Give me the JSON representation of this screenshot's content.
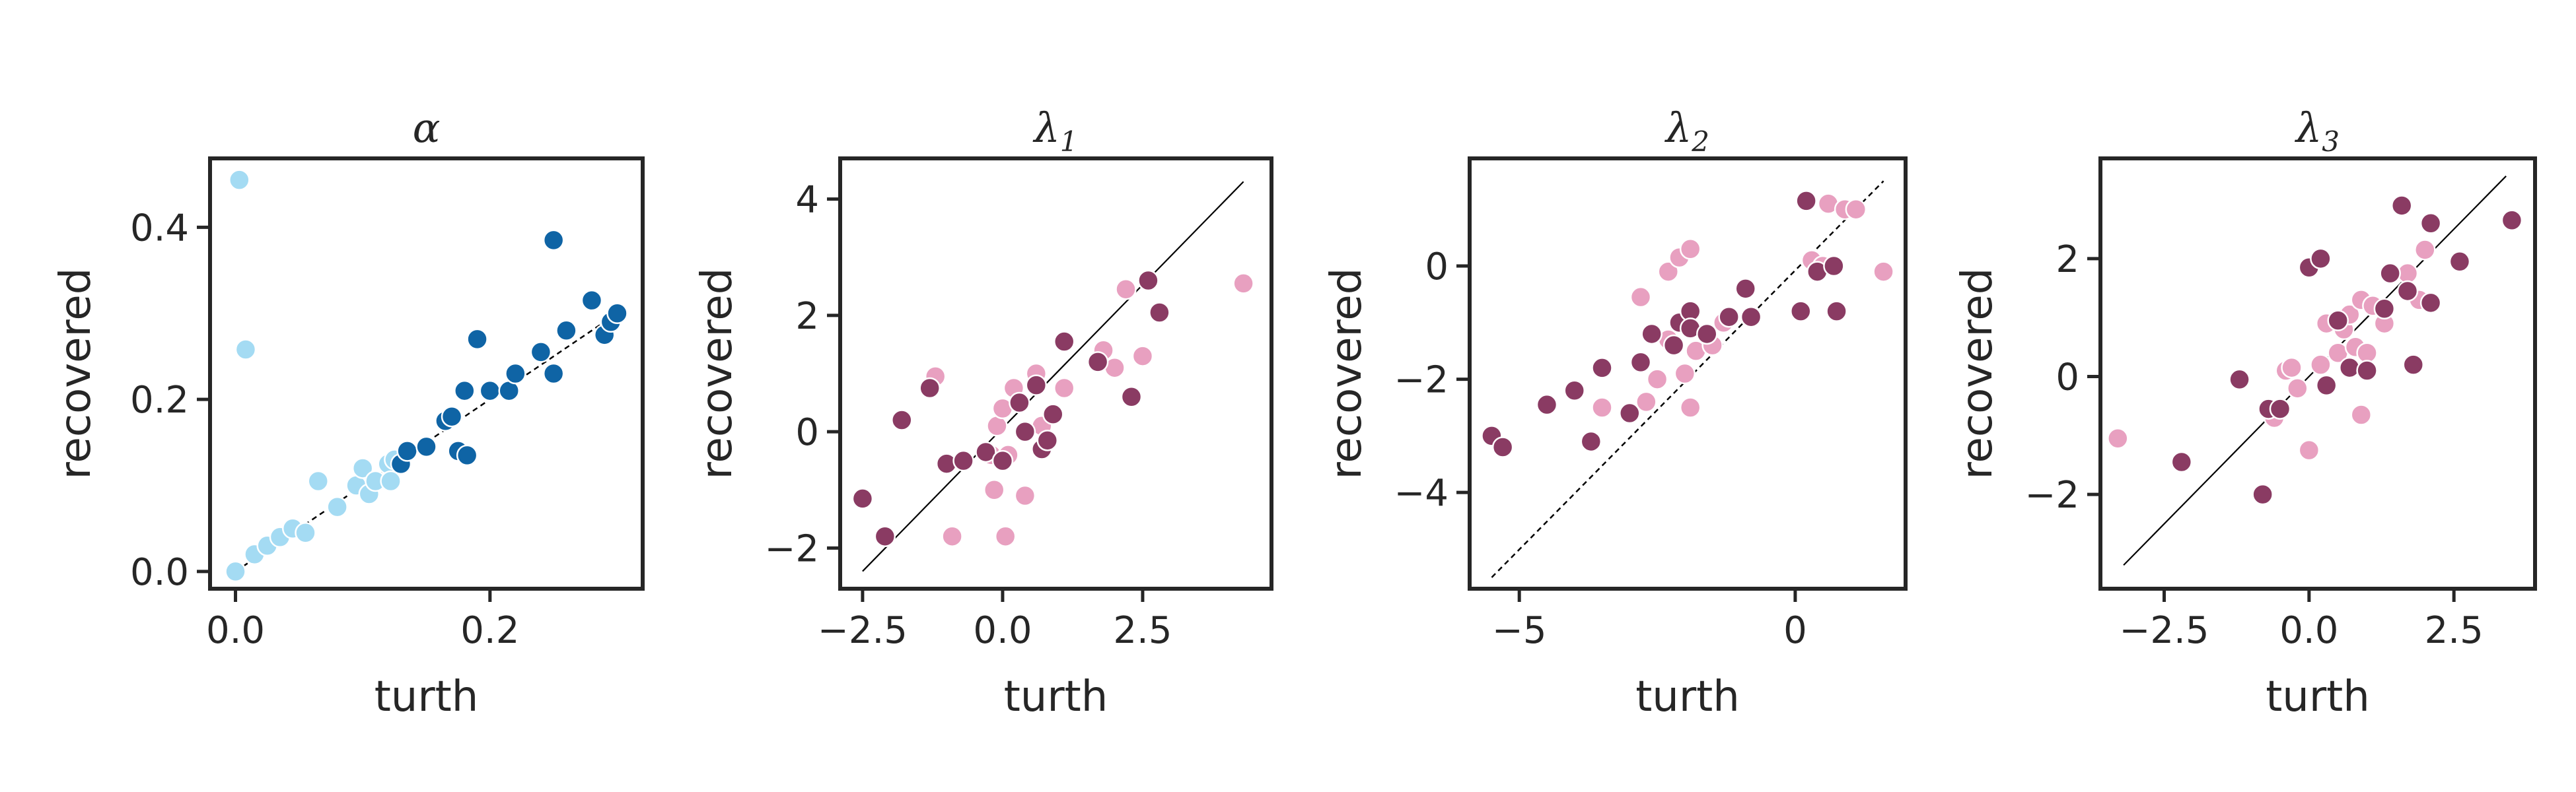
{
  "figure": {
    "panels": [
      "alpha",
      "lambda1",
      "lambda2",
      "lambda3"
    ]
  },
  "colors": {
    "alpha_light": "#a4dbf3",
    "alpha_dark": "#0f64a5",
    "lambda_light": "#e8a0c0",
    "lambda_dark": "#8a3b63",
    "axes": "#262626",
    "point_edge": "#ffffff"
  },
  "chart_data": [
    {
      "type": "scatter",
      "title": "α",
      "title_main": "α",
      "title_sub": "",
      "xlabel": "turth",
      "ylabel": "recovered",
      "xlim": [
        -0.02,
        0.32
      ],
      "ylim": [
        -0.02,
        0.48
      ],
      "xticks": [
        0.0,
        0.2
      ],
      "xtick_labels": [
        "0.0",
        "0.2"
      ],
      "yticks": [
        0.0,
        0.2,
        0.4
      ],
      "ytick_labels": [
        "0.0",
        "0.2",
        "0.4"
      ],
      "reference_line": {
        "style": "dashed",
        "x": [
          0.0,
          0.3
        ],
        "y": [
          0.0,
          0.3
        ]
      },
      "series": [
        {
          "color_key": "alpha_light",
          "points": [
            [
              0.0,
              0.0
            ],
            [
              0.003,
              0.455
            ],
            [
              0.008,
              0.258
            ],
            [
              0.015,
              0.02
            ],
            [
              0.025,
              0.03
            ],
            [
              0.035,
              0.04
            ],
            [
              0.045,
              0.05
            ],
            [
              0.055,
              0.045
            ],
            [
              0.065,
              0.105
            ],
            [
              0.08,
              0.075
            ],
            [
              0.095,
              0.1
            ],
            [
              0.1,
              0.12
            ],
            [
              0.105,
              0.09
            ],
            [
              0.11,
              0.105
            ],
            [
              0.12,
              0.125
            ],
            [
              0.122,
              0.105
            ],
            [
              0.125,
              0.13
            ]
          ]
        },
        {
          "color_key": "alpha_dark",
          "points": [
            [
              0.13,
              0.125
            ],
            [
              0.135,
              0.14
            ],
            [
              0.15,
              0.145
            ],
            [
              0.165,
              0.175
            ],
            [
              0.17,
              0.18
            ],
            [
              0.175,
              0.14
            ],
            [
              0.18,
              0.21
            ],
            [
              0.182,
              0.135
            ],
            [
              0.19,
              0.27
            ],
            [
              0.2,
              0.21
            ],
            [
              0.215,
              0.21
            ],
            [
              0.22,
              0.23
            ],
            [
              0.24,
              0.255
            ],
            [
              0.25,
              0.23
            ],
            [
              0.25,
              0.385
            ],
            [
              0.26,
              0.28
            ],
            [
              0.28,
              0.315
            ],
            [
              0.29,
              0.275
            ],
            [
              0.295,
              0.29
            ],
            [
              0.3,
              0.3
            ]
          ]
        }
      ]
    },
    {
      "type": "scatter",
      "title": "λ1",
      "title_main": "λ",
      "title_sub": "1",
      "xlabel": "turth",
      "ylabel": "recovered",
      "xlim": [
        -2.9,
        4.8
      ],
      "ylim": [
        -2.7,
        4.7
      ],
      "xticks": [
        -2.5,
        0.0,
        2.5
      ],
      "xtick_labels": [
        "−2.5",
        "0.0",
        "2.5"
      ],
      "yticks": [
        -2,
        0,
        2,
        4
      ],
      "ytick_labels": [
        "−2",
        "0",
        "2",
        "4"
      ],
      "reference_line": {
        "style": "solid-dashed",
        "x": [
          -2.5,
          4.3
        ],
        "y": [
          -2.4,
          4.3
        ]
      },
      "series": [
        {
          "color_key": "lambda_light",
          "points": [
            [
              -1.2,
              0.95
            ],
            [
              -0.9,
              -1.8
            ],
            [
              -0.2,
              -0.4
            ],
            [
              -0.15,
              -1.0
            ],
            [
              -0.1,
              0.1
            ],
            [
              0.0,
              0.4
            ],
            [
              0.05,
              -1.8
            ],
            [
              0.1,
              -0.4
            ],
            [
              0.2,
              0.75
            ],
            [
              0.4,
              -1.1
            ],
            [
              0.6,
              1.0
            ],
            [
              0.7,
              0.1
            ],
            [
              1.1,
              0.75
            ],
            [
              1.8,
              1.4
            ],
            [
              2.0,
              1.1
            ],
            [
              2.2,
              2.45
            ],
            [
              2.5,
              1.3
            ],
            [
              4.3,
              2.55
            ]
          ]
        },
        {
          "color_key": "lambda_dark",
          "points": [
            [
              -2.5,
              -1.15
            ],
            [
              -2.1,
              -1.8
            ],
            [
              -1.8,
              0.2
            ],
            [
              -1.3,
              0.75
            ],
            [
              -1.0,
              -0.55
            ],
            [
              -0.7,
              -0.5
            ],
            [
              -0.3,
              -0.35
            ],
            [
              0.0,
              -0.5
            ],
            [
              0.3,
              0.5
            ],
            [
              0.4,
              0.0
            ],
            [
              0.6,
              0.8
            ],
            [
              0.7,
              -0.3
            ],
            [
              0.8,
              -0.15
            ],
            [
              0.9,
              0.3
            ],
            [
              1.1,
              1.55
            ],
            [
              1.7,
              1.2
            ],
            [
              2.3,
              0.6
            ],
            [
              2.6,
              2.6
            ],
            [
              2.8,
              2.05
            ]
          ]
        }
      ]
    },
    {
      "type": "scatter",
      "title": "λ2",
      "title_main": "λ",
      "title_sub": "2",
      "xlabel": "turth",
      "ylabel": "recovered",
      "xlim": [
        -5.9,
        2.0
      ],
      "ylim": [
        -5.7,
        1.9
      ],
      "xticks": [
        -5,
        0
      ],
      "xtick_labels": [
        "−5",
        "0"
      ],
      "yticks": [
        -4,
        -2,
        0
      ],
      "ytick_labels": [
        "−4",
        "−2",
        "0"
      ],
      "reference_line": {
        "style": "dashed",
        "x": [
          -5.5,
          1.6
        ],
        "y": [
          -5.5,
          1.5
        ]
      },
      "series": [
        {
          "color_key": "lambda_light",
          "points": [
            [
              -3.5,
              -2.5
            ],
            [
              -2.8,
              -0.55
            ],
            [
              -2.7,
              -2.4
            ],
            [
              -2.5,
              -2.0
            ],
            [
              -2.3,
              -0.1
            ],
            [
              -2.3,
              -1.3
            ],
            [
              -2.1,
              0.15
            ],
            [
              -2.0,
              -1.9
            ],
            [
              -1.9,
              0.3
            ],
            [
              -1.9,
              -2.5
            ],
            [
              -1.8,
              -1.5
            ],
            [
              -1.5,
              -1.4
            ],
            [
              -1.3,
              -1.0
            ],
            [
              0.3,
              0.1
            ],
            [
              0.4,
              -0.1
            ],
            [
              0.5,
              0.0
            ],
            [
              0.6,
              1.1
            ],
            [
              0.9,
              1.0
            ],
            [
              1.1,
              1.0
            ],
            [
              1.6,
              -0.1
            ]
          ]
        },
        {
          "color_key": "lambda_dark",
          "points": [
            [
              -5.5,
              -3.0
            ],
            [
              -5.3,
              -3.2
            ],
            [
              -4.5,
              -2.45
            ],
            [
              -4.0,
              -2.2
            ],
            [
              -3.7,
              -3.1
            ],
            [
              -3.5,
              -1.8
            ],
            [
              -3.0,
              -2.6
            ],
            [
              -2.8,
              -1.7
            ],
            [
              -2.6,
              -1.2
            ],
            [
              -2.2,
              -1.4
            ],
            [
              -2.1,
              -1.0
            ],
            [
              -1.9,
              -0.8
            ],
            [
              -1.9,
              -1.1
            ],
            [
              -1.6,
              -1.2
            ],
            [
              -1.2,
              -0.9
            ],
            [
              -0.9,
              -0.4
            ],
            [
              -0.8,
              -0.9
            ],
            [
              0.1,
              -0.8
            ],
            [
              0.2,
              1.15
            ],
            [
              0.4,
              -0.1
            ],
            [
              0.7,
              0.0
            ],
            [
              0.75,
              -0.8
            ]
          ]
        }
      ]
    },
    {
      "type": "scatter",
      "title": "λ3",
      "title_main": "λ",
      "title_sub": "3",
      "xlabel": "turth",
      "ylabel": "recovered",
      "xlim": [
        -3.6,
        3.9
      ],
      "ylim": [
        -3.6,
        3.7
      ],
      "xticks": [
        -2.5,
        0.0,
        2.5
      ],
      "xtick_labels": [
        "−2.5",
        "0.0",
        "2.5"
      ],
      "yticks": [
        -2,
        0,
        2
      ],
      "ytick_labels": [
        "−2",
        "0",
        "2"
      ],
      "reference_line": {
        "style": "solid-dashed",
        "x": [
          -3.2,
          3.4
        ],
        "y": [
          -3.2,
          3.4
        ]
      },
      "series": [
        {
          "color_key": "lambda_light",
          "points": [
            [
              -3.3,
              -1.05
            ],
            [
              -0.6,
              -0.7
            ],
            [
              -0.4,
              0.1
            ],
            [
              -0.3,
              0.15
            ],
            [
              -0.2,
              -0.2
            ],
            [
              0.0,
              -1.25
            ],
            [
              0.2,
              0.2
            ],
            [
              0.3,
              0.9
            ],
            [
              0.5,
              0.4
            ],
            [
              0.6,
              0.8
            ],
            [
              0.7,
              1.05
            ],
            [
              0.8,
              0.5
            ],
            [
              0.9,
              1.3
            ],
            [
              0.9,
              -0.65
            ],
            [
              1.0,
              0.4
            ],
            [
              1.1,
              1.2
            ],
            [
              1.3,
              0.9
            ],
            [
              1.7,
              1.75
            ],
            [
              1.9,
              1.3
            ],
            [
              2.0,
              2.15
            ]
          ]
        },
        {
          "color_key": "lambda_dark",
          "points": [
            [
              -2.2,
              -1.45
            ],
            [
              -1.2,
              -0.05
            ],
            [
              -0.8,
              -2.0
            ],
            [
              -0.7,
              -0.55
            ],
            [
              -0.5,
              -0.55
            ],
            [
              0.0,
              1.85
            ],
            [
              0.2,
              2.0
            ],
            [
              0.3,
              -0.15
            ],
            [
              0.5,
              0.95
            ],
            [
              0.7,
              0.15
            ],
            [
              1.0,
              0.1
            ],
            [
              1.3,
              1.15
            ],
            [
              1.4,
              1.75
            ],
            [
              1.6,
              2.9
            ],
            [
              1.7,
              1.45
            ],
            [
              1.8,
              0.2
            ],
            [
              2.1,
              1.25
            ],
            [
              2.1,
              2.6
            ],
            [
              2.6,
              1.95
            ],
            [
              3.5,
              2.65
            ]
          ]
        }
      ]
    }
  ]
}
